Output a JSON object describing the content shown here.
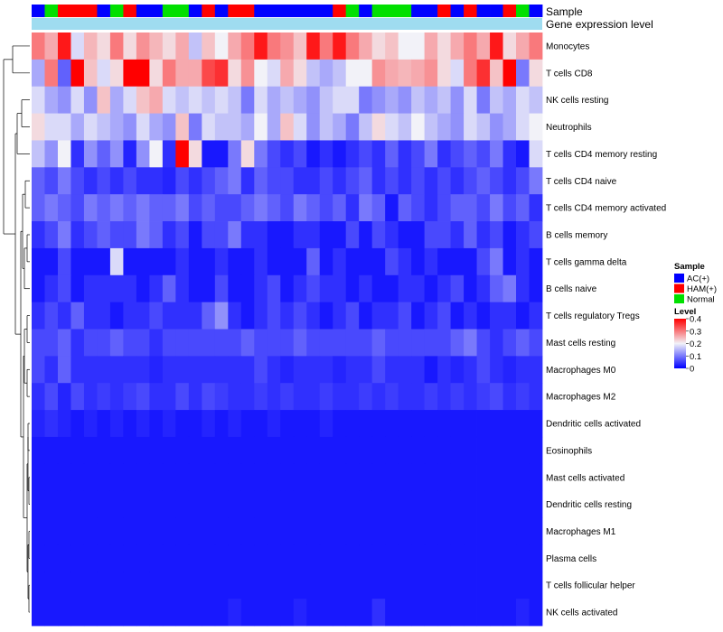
{
  "chart_data": {
    "type": "heatmap",
    "title": "",
    "annotation_labels": [
      "Sample",
      "Gene expression level"
    ],
    "row_labels": [
      "Monocytes",
      "T cells CD8",
      "NK cells resting",
      "Neutrophils",
      "T cells CD4 memory resting",
      "T cells CD4 naive",
      "T cells CD4 memory activated",
      "B cells memory",
      "T cells gamma delta",
      "B cells naive",
      "T cells regulatory  Tregs",
      "Mast cells resting",
      "Macrophages M0",
      "Macrophages M2",
      "Dendritic cells activated",
      "Eosinophils",
      "Mast cells activated",
      "Dendritic cells resting",
      "Macrophages M1",
      "Plasma cells",
      "T cells follicular helper",
      "NK cells activated"
    ],
    "sample_groups": [
      "AC",
      "Normal",
      "HAM",
      "HAM",
      "HAM",
      "AC",
      "Normal",
      "HAM",
      "AC",
      "AC",
      "Normal",
      "Normal",
      "AC",
      "HAM",
      "AC",
      "HAM",
      "HAM",
      "AC",
      "AC",
      "AC",
      "AC",
      "AC",
      "AC",
      "HAM",
      "Normal",
      "AC",
      "Normal",
      "Normal",
      "Normal",
      "AC",
      "AC",
      "HAM",
      "AC",
      "HAM",
      "AC",
      "AC",
      "HAM",
      "Normal",
      "AC"
    ],
    "values": [
      [
        0.3,
        0.26,
        0.38,
        0.18,
        0.25,
        0.22,
        0.3,
        0.22,
        0.28,
        0.25,
        0.22,
        0.26,
        0.16,
        0.24,
        0.2,
        0.26,
        0.3,
        0.38,
        0.3,
        0.28,
        0.24,
        0.38,
        0.3,
        0.38,
        0.3,
        0.26,
        0.22,
        0.24,
        0.2,
        0.2,
        0.26,
        0.22,
        0.26,
        0.3,
        0.26,
        0.38,
        0.22,
        0.26,
        0.3
      ],
      [
        0.14,
        0.3,
        0.08,
        0.4,
        0.24,
        0.18,
        0.22,
        0.4,
        0.4,
        0.22,
        0.3,
        0.26,
        0.26,
        0.34,
        0.36,
        0.22,
        0.28,
        0.2,
        0.18,
        0.26,
        0.22,
        0.16,
        0.14,
        0.16,
        0.2,
        0.2,
        0.28,
        0.26,
        0.25,
        0.26,
        0.28,
        0.22,
        0.18,
        0.3,
        0.36,
        0.24,
        0.4,
        0.1,
        0.22
      ],
      [
        0.18,
        0.14,
        0.12,
        0.18,
        0.12,
        0.24,
        0.14,
        0.18,
        0.24,
        0.26,
        0.18,
        0.16,
        0.18,
        0.16,
        0.18,
        0.16,
        0.1,
        0.18,
        0.14,
        0.16,
        0.14,
        0.12,
        0.16,
        0.18,
        0.18,
        0.1,
        0.12,
        0.14,
        0.12,
        0.16,
        0.14,
        0.16,
        0.12,
        0.18,
        0.1,
        0.16,
        0.14,
        0.18,
        0.16
      ],
      [
        0.22,
        0.18,
        0.18,
        0.14,
        0.18,
        0.16,
        0.14,
        0.12,
        0.18,
        0.14,
        0.12,
        0.24,
        0.1,
        0.18,
        0.16,
        0.16,
        0.14,
        0.2,
        0.14,
        0.24,
        0.18,
        0.12,
        0.16,
        0.14,
        0.1,
        0.16,
        0.22,
        0.18,
        0.16,
        0.2,
        0.16,
        0.14,
        0.12,
        0.18,
        0.16,
        0.12,
        0.14,
        0.18,
        0.2
      ],
      [
        0.16,
        0.12,
        0.2,
        0.04,
        0.12,
        0.08,
        0.12,
        0.03,
        0.12,
        0.2,
        0.04,
        0.4,
        0.22,
        0.02,
        0.02,
        0.1,
        0.22,
        0.1,
        0.06,
        0.04,
        0.06,
        0.02,
        0.04,
        0.02,
        0.04,
        0.06,
        0.04,
        0.08,
        0.04,
        0.06,
        0.1,
        0.04,
        0.06,
        0.08,
        0.06,
        0.1,
        0.04,
        0.02,
        0.18
      ],
      [
        0.08,
        0.06,
        0.1,
        0.06,
        0.04,
        0.06,
        0.04,
        0.06,
        0.04,
        0.04,
        0.03,
        0.06,
        0.04,
        0.06,
        0.08,
        0.1,
        0.04,
        0.08,
        0.06,
        0.06,
        0.04,
        0.04,
        0.06,
        0.04,
        0.06,
        0.08,
        0.04,
        0.06,
        0.04,
        0.06,
        0.04,
        0.06,
        0.04,
        0.06,
        0.08,
        0.06,
        0.04,
        0.06,
        0.1
      ],
      [
        0.08,
        0.1,
        0.08,
        0.06,
        0.1,
        0.08,
        0.1,
        0.08,
        0.1,
        0.08,
        0.08,
        0.1,
        0.06,
        0.08,
        0.06,
        0.06,
        0.08,
        0.1,
        0.08,
        0.06,
        0.1,
        0.08,
        0.06,
        0.08,
        0.04,
        0.1,
        0.08,
        0.02,
        0.08,
        0.06,
        0.04,
        0.06,
        0.08,
        0.08,
        0.06,
        0.1,
        0.06,
        0.08,
        0.04
      ],
      [
        0.04,
        0.06,
        0.1,
        0.04,
        0.06,
        0.08,
        0.06,
        0.06,
        0.1,
        0.08,
        0.04,
        0.06,
        0.02,
        0.06,
        0.06,
        0.1,
        0.04,
        0.04,
        0.02,
        0.02,
        0.04,
        0.04,
        0.02,
        0.02,
        0.06,
        0.02,
        0.06,
        0.04,
        0.02,
        0.02,
        0.06,
        0.06,
        0.04,
        0.08,
        0.04,
        0.06,
        0.02,
        0.04,
        0.06
      ],
      [
        0.02,
        0.02,
        0.06,
        0.02,
        0.02,
        0.02,
        0.18,
        0.02,
        0.02,
        0.02,
        0.02,
        0.04,
        0.02,
        0.02,
        0.04,
        0.02,
        0.02,
        0.04,
        0.02,
        0.02,
        0.02,
        0.08,
        0.02,
        0.04,
        0.02,
        0.02,
        0.02,
        0.06,
        0.04,
        0.02,
        0.04,
        0.02,
        0.02,
        0.02,
        0.06,
        0.1,
        0.02,
        0.04,
        0.02
      ],
      [
        0.02,
        0.04,
        0.06,
        0.02,
        0.04,
        0.04,
        0.04,
        0.04,
        0.02,
        0.04,
        0.08,
        0.04,
        0.02,
        0.02,
        0.06,
        0.02,
        0.02,
        0.04,
        0.06,
        0.02,
        0.04,
        0.06,
        0.04,
        0.04,
        0.02,
        0.04,
        0.02,
        0.02,
        0.04,
        0.04,
        0.02,
        0.04,
        0.06,
        0.02,
        0.04,
        0.08,
        0.1,
        0.04,
        0.02
      ],
      [
        0.04,
        0.06,
        0.04,
        0.08,
        0.04,
        0.04,
        0.02,
        0.04,
        0.04,
        0.06,
        0.04,
        0.04,
        0.04,
        0.08,
        0.12,
        0.04,
        0.02,
        0.04,
        0.06,
        0.04,
        0.06,
        0.04,
        0.02,
        0.04,
        0.06,
        0.02,
        0.04,
        0.04,
        0.06,
        0.02,
        0.04,
        0.06,
        0.02,
        0.04,
        0.02,
        0.04,
        0.04,
        0.02,
        0.04
      ],
      [
        0.06,
        0.06,
        0.08,
        0.04,
        0.06,
        0.06,
        0.08,
        0.06,
        0.06,
        0.04,
        0.06,
        0.06,
        0.06,
        0.06,
        0.06,
        0.06,
        0.08,
        0.06,
        0.06,
        0.06,
        0.08,
        0.06,
        0.06,
        0.06,
        0.06,
        0.06,
        0.08,
        0.06,
        0.06,
        0.06,
        0.06,
        0.06,
        0.08,
        0.1,
        0.06,
        0.04,
        0.06,
        0.08,
        0.06
      ],
      [
        0.06,
        0.04,
        0.08,
        0.04,
        0.04,
        0.04,
        0.04,
        0.04,
        0.04,
        0.03,
        0.04,
        0.04,
        0.04,
        0.04,
        0.04,
        0.04,
        0.04,
        0.06,
        0.04,
        0.03,
        0.04,
        0.04,
        0.04,
        0.03,
        0.04,
        0.04,
        0.06,
        0.04,
        0.04,
        0.04,
        0.02,
        0.04,
        0.03,
        0.04,
        0.06,
        0.04,
        0.03,
        0.04,
        0.04
      ],
      [
        0.04,
        0.06,
        0.03,
        0.06,
        0.04,
        0.05,
        0.04,
        0.05,
        0.06,
        0.04,
        0.04,
        0.06,
        0.04,
        0.06,
        0.05,
        0.04,
        0.04,
        0.05,
        0.04,
        0.05,
        0.04,
        0.04,
        0.05,
        0.04,
        0.04,
        0.05,
        0.04,
        0.05,
        0.04,
        0.04,
        0.05,
        0.04,
        0.05,
        0.04,
        0.05,
        0.06,
        0.04,
        0.05,
        0.04
      ],
      [
        0.03,
        0.04,
        0.03,
        0.02,
        0.03,
        0.02,
        0.03,
        0.02,
        0.03,
        0.02,
        0.03,
        0.02,
        0.02,
        0.03,
        0.02,
        0.03,
        0.02,
        0.02,
        0.03,
        0.02,
        0.02,
        0.02,
        0.03,
        0.02,
        0.02,
        0.02,
        0.02,
        0.02,
        0.02,
        0.02,
        0.02,
        0.02,
        0.02,
        0.02,
        0.02,
        0.02,
        0.02,
        0.02,
        0.02
      ],
      [
        0.02,
        0.02,
        0.02,
        0.02,
        0.02,
        0.02,
        0.02,
        0.02,
        0.02,
        0.02,
        0.02,
        0.02,
        0.02,
        0.02,
        0.02,
        0.02,
        0.02,
        0.02,
        0.02,
        0.02,
        0.02,
        0.02,
        0.02,
        0.02,
        0.02,
        0.02,
        0.02,
        0.02,
        0.02,
        0.02,
        0.02,
        0.02,
        0.02,
        0.02,
        0.02,
        0.02,
        0.02,
        0.02,
        0.02
      ],
      [
        0.02,
        0.02,
        0.02,
        0.02,
        0.02,
        0.02,
        0.02,
        0.02,
        0.02,
        0.02,
        0.02,
        0.02,
        0.02,
        0.02,
        0.02,
        0.02,
        0.02,
        0.02,
        0.02,
        0.02,
        0.02,
        0.02,
        0.02,
        0.02,
        0.02,
        0.02,
        0.02,
        0.02,
        0.02,
        0.02,
        0.02,
        0.02,
        0.02,
        0.02,
        0.02,
        0.02,
        0.02,
        0.02,
        0.02
      ],
      [
        0.02,
        0.02,
        0.02,
        0.02,
        0.02,
        0.02,
        0.02,
        0.02,
        0.02,
        0.02,
        0.02,
        0.02,
        0.02,
        0.02,
        0.02,
        0.02,
        0.02,
        0.02,
        0.02,
        0.02,
        0.02,
        0.02,
        0.02,
        0.02,
        0.02,
        0.02,
        0.02,
        0.02,
        0.02,
        0.02,
        0.02,
        0.02,
        0.02,
        0.02,
        0.02,
        0.02,
        0.02,
        0.02,
        0.02
      ],
      [
        0.02,
        0.02,
        0.02,
        0.02,
        0.02,
        0.02,
        0.02,
        0.02,
        0.02,
        0.02,
        0.02,
        0.02,
        0.02,
        0.02,
        0.02,
        0.02,
        0.02,
        0.02,
        0.02,
        0.02,
        0.02,
        0.02,
        0.02,
        0.02,
        0.02,
        0.02,
        0.02,
        0.02,
        0.02,
        0.02,
        0.02,
        0.02,
        0.02,
        0.02,
        0.02,
        0.02,
        0.02,
        0.02,
        0.02
      ],
      [
        0.02,
        0.02,
        0.02,
        0.02,
        0.02,
        0.02,
        0.02,
        0.02,
        0.02,
        0.02,
        0.02,
        0.02,
        0.02,
        0.02,
        0.02,
        0.02,
        0.02,
        0.02,
        0.02,
        0.02,
        0.02,
        0.02,
        0.02,
        0.02,
        0.02,
        0.02,
        0.02,
        0.02,
        0.02,
        0.02,
        0.02,
        0.02,
        0.02,
        0.02,
        0.02,
        0.02,
        0.02,
        0.02,
        0.02
      ],
      [
        0.02,
        0.02,
        0.02,
        0.02,
        0.02,
        0.02,
        0.02,
        0.02,
        0.02,
        0.02,
        0.02,
        0.02,
        0.02,
        0.02,
        0.02,
        0.02,
        0.02,
        0.02,
        0.02,
        0.02,
        0.02,
        0.02,
        0.02,
        0.02,
        0.02,
        0.02,
        0.02,
        0.02,
        0.02,
        0.02,
        0.02,
        0.02,
        0.02,
        0.02,
        0.02,
        0.02,
        0.02,
        0.02,
        0.02
      ],
      [
        0.02,
        0.02,
        0.02,
        0.02,
        0.02,
        0.02,
        0.02,
        0.02,
        0.02,
        0.02,
        0.02,
        0.02,
        0.02,
        0.02,
        0.02,
        0.03,
        0.02,
        0.02,
        0.02,
        0.02,
        0.03,
        0.02,
        0.02,
        0.02,
        0.02,
        0.02,
        0.04,
        0.02,
        0.02,
        0.02,
        0.02,
        0.02,
        0.02,
        0.02,
        0.02,
        0.02,
        0.02,
        0.03,
        0.02
      ]
    ],
    "color_scale": {
      "min": 0,
      "max": 0.4,
      "low": "#0000ff",
      "mid": "#f2f2f8",
      "high": "#ff0000"
    },
    "legend": {
      "sample_title": "Sample",
      "groups": [
        {
          "key": "AC",
          "label": "AC(+)",
          "color": "#0000ff"
        },
        {
          "key": "HAM",
          "label": "HAM(+)",
          "color": "#ff0000"
        },
        {
          "key": "Normal",
          "label": "Normal",
          "color": "#00e000"
        }
      ],
      "level_title": "Level",
      "level_ticks": [
        "0.4",
        "0.3",
        "0.2",
        "0.1",
        "0"
      ],
      "level_tick_values": [
        0.4,
        0.3,
        0.2,
        0.1,
        0
      ],
      "placement": "right"
    },
    "expression_bar_color": "#9fdcf0"
  }
}
